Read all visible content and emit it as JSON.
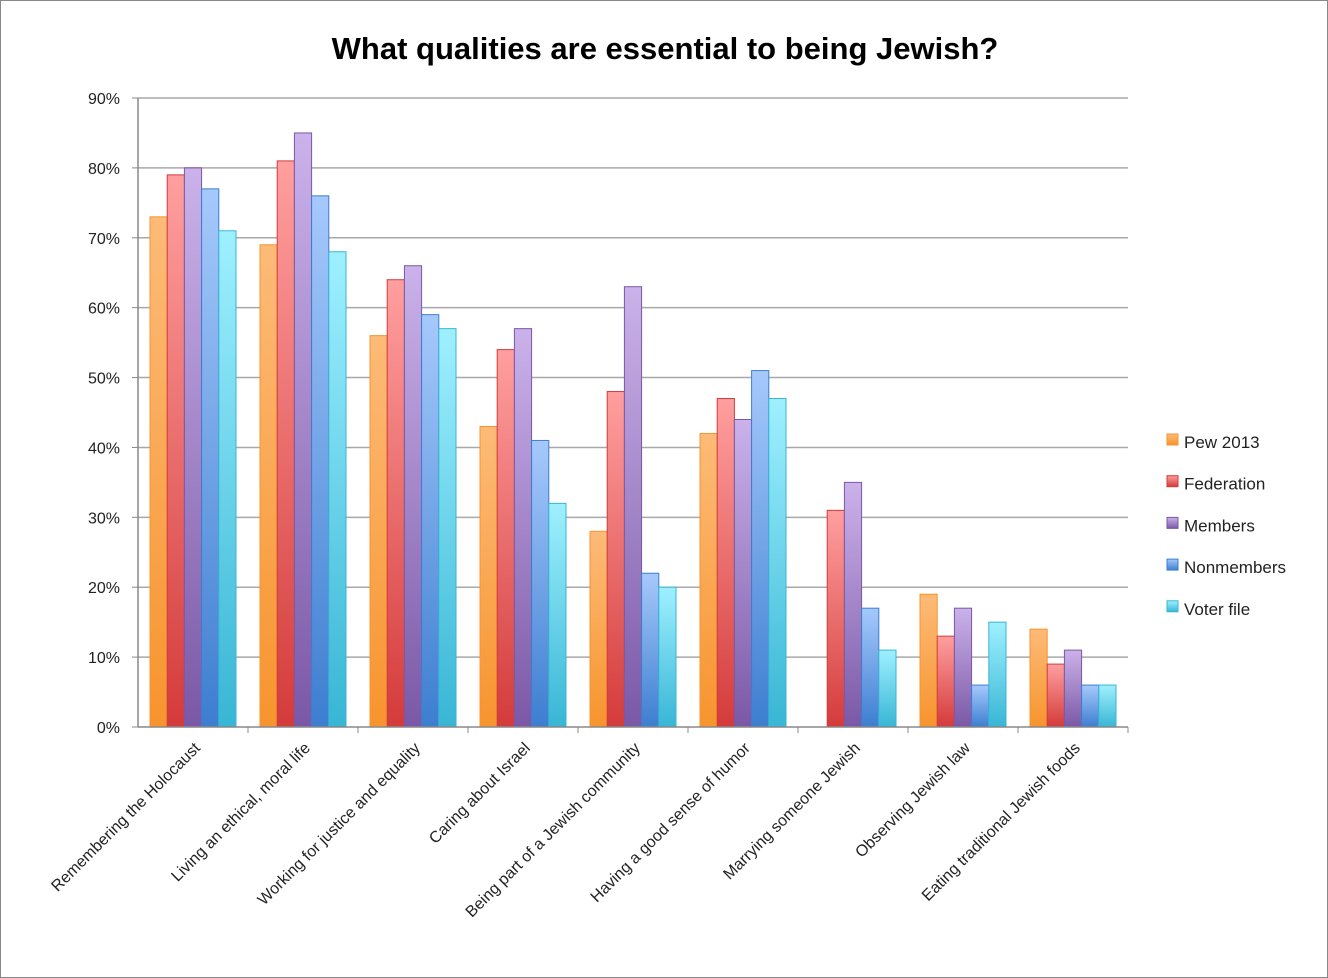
{
  "chart_data": {
    "type": "bar",
    "title": "What qualities are essential to being Jewish?",
    "xlabel": "",
    "ylabel": "",
    "ylim": [
      0,
      90
    ],
    "y_ticks": [
      "0%",
      "10%",
      "20%",
      "30%",
      "40%",
      "50%",
      "60%",
      "70%",
      "80%",
      "90%"
    ],
    "grid": true,
    "legend_placement": "right",
    "categories": [
      "Remembering the Holocaust",
      "Living an ethical, moral life",
      "Working for justice and equality",
      "Caring about Israel",
      "Being part of a Jewish community",
      "Having a good sense of humor",
      "Marrying someone Jewish",
      "Observing Jewish law",
      "Eating traditional Jewish foods"
    ],
    "series": [
      {
        "name": "Pew 2013",
        "color": "#f7942e",
        "light": "#fdbb78",
        "values": [
          73,
          69,
          56,
          43,
          28,
          42,
          null,
          19,
          14
        ]
      },
      {
        "name": "Federation",
        "color": "#d43b3b",
        "light": "#ff9f9f",
        "values": [
          79,
          81,
          64,
          54,
          48,
          47,
          31,
          13,
          9
        ]
      },
      {
        "name": "Members",
        "color": "#7b58a6",
        "light": "#cbb2ea",
        "values": [
          80,
          85,
          66,
          57,
          63,
          44,
          35,
          17,
          11
        ]
      },
      {
        "name": "Nonmembers",
        "color": "#3d7ed0",
        "light": "#a6c9fc",
        "values": [
          77,
          76,
          59,
          41,
          22,
          51,
          17,
          6,
          6
        ]
      },
      {
        "name": "Voter file",
        "color": "#38b6d5",
        "light": "#9ff0ff",
        "values": [
          71,
          68,
          57,
          32,
          20,
          47,
          11,
          15,
          6
        ]
      }
    ]
  }
}
